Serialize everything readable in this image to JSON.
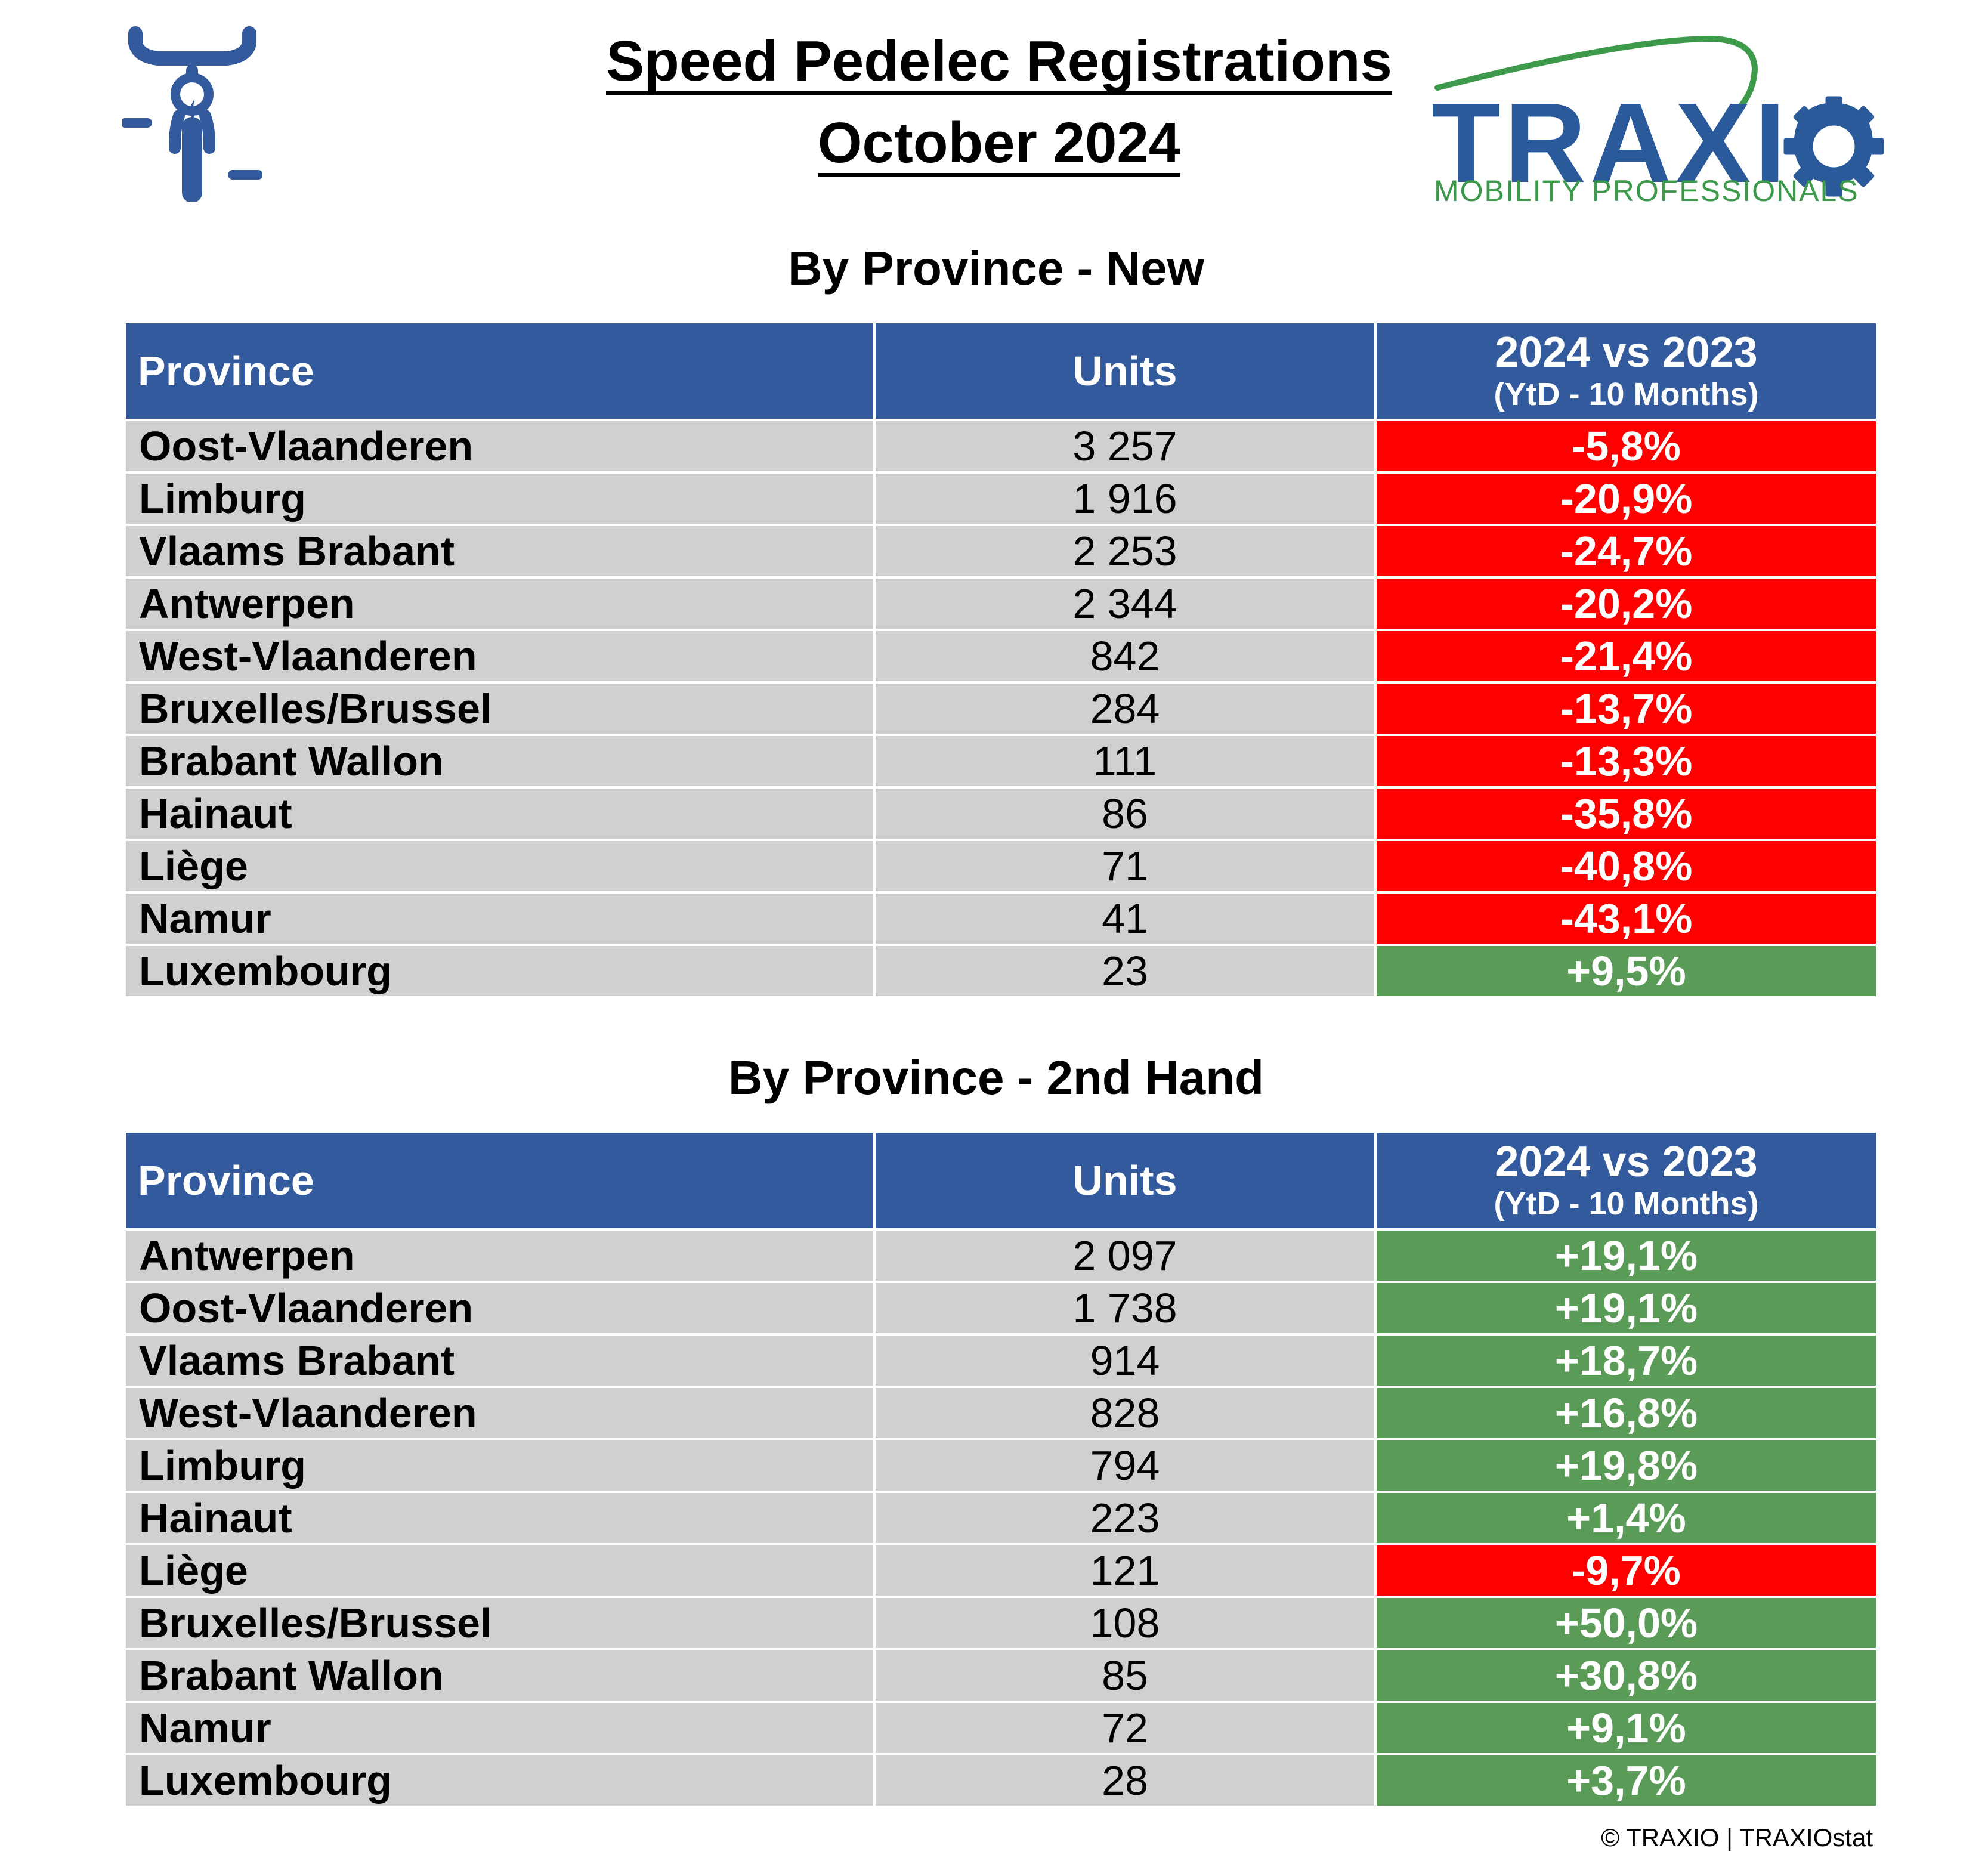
{
  "header": {
    "title_line1": "Speed Pedelec Registrations",
    "title_line2": "October 2024",
    "logo_icon": "speed-pedelec-icon",
    "logo_word": "TRAXIO",
    "logo_tagline": "MOBILITY PROFESSIONALS"
  },
  "colors": {
    "header_blue": "#335a9c",
    "cell_grey": "#d0d0d0",
    "negative_red": "#ff0000",
    "positive_green": "#5b9b58",
    "logo_blue": "#2b5a9b",
    "logo_green": "#3d9a4a"
  },
  "sections": [
    {
      "title": "By Province - New",
      "columns": {
        "province": "Province",
        "units": "Units",
        "change": "2024 vs 2023",
        "change_sub": "(YtD - 10 Months)"
      },
      "rows": [
        {
          "province": "Oost-Vlaanderen",
          "units": "3 257",
          "change": "-5,8%",
          "trend": "neg"
        },
        {
          "province": "Limburg",
          "units": "1 916",
          "change": "-20,9%",
          "trend": "neg"
        },
        {
          "province": "Vlaams Brabant",
          "units": "2 253",
          "change": "-24,7%",
          "trend": "neg"
        },
        {
          "province": "Antwerpen",
          "units": "2 344",
          "change": "-20,2%",
          "trend": "neg"
        },
        {
          "province": "West-Vlaanderen",
          "units": "842",
          "change": "-21,4%",
          "trend": "neg"
        },
        {
          "province": "Bruxelles/Brussel",
          "units": "284",
          "change": "-13,7%",
          "trend": "neg"
        },
        {
          "province": "Brabant Wallon",
          "units": "111",
          "change": "-13,3%",
          "trend": "neg"
        },
        {
          "province": "Hainaut",
          "units": "86",
          "change": "-35,8%",
          "trend": "neg"
        },
        {
          "province": "Liège",
          "units": "71",
          "change": "-40,8%",
          "trend": "neg"
        },
        {
          "province": "Namur",
          "units": "41",
          "change": "-43,1%",
          "trend": "neg"
        },
        {
          "province": "Luxembourg",
          "units": "23",
          "change": "+9,5%",
          "trend": "pos"
        }
      ]
    },
    {
      "title": "By Province - 2nd Hand",
      "columns": {
        "province": "Province",
        "units": "Units",
        "change": "2024 vs 2023",
        "change_sub": "(YtD - 10 Months)"
      },
      "rows": [
        {
          "province": "Antwerpen",
          "units": "2 097",
          "change": "+19,1%",
          "trend": "pos"
        },
        {
          "province": "Oost-Vlaanderen",
          "units": "1 738",
          "change": "+19,1%",
          "trend": "pos"
        },
        {
          "province": "Vlaams Brabant",
          "units": "914",
          "change": "+18,7%",
          "trend": "pos"
        },
        {
          "province": "West-Vlaanderen",
          "units": "828",
          "change": "+16,8%",
          "trend": "pos"
        },
        {
          "province": "Limburg",
          "units": "794",
          "change": "+19,8%",
          "trend": "pos"
        },
        {
          "province": "Hainaut",
          "units": "223",
          "change": "+1,4%",
          "trend": "pos"
        },
        {
          "province": "Liège",
          "units": "121",
          "change": "-9,7%",
          "trend": "neg"
        },
        {
          "province": "Bruxelles/Brussel",
          "units": "108",
          "change": "+50,0%",
          "trend": "pos"
        },
        {
          "province": "Brabant Wallon",
          "units": "85",
          "change": "+30,8%",
          "trend": "pos"
        },
        {
          "province": "Namur",
          "units": "72",
          "change": "+9,1%",
          "trend": "pos"
        },
        {
          "province": "Luxembourg",
          "units": "28",
          "change": "+3,7%",
          "trend": "pos"
        }
      ]
    }
  ],
  "footer": {
    "credit": "© TRAXIO | TRAXIOstat"
  }
}
